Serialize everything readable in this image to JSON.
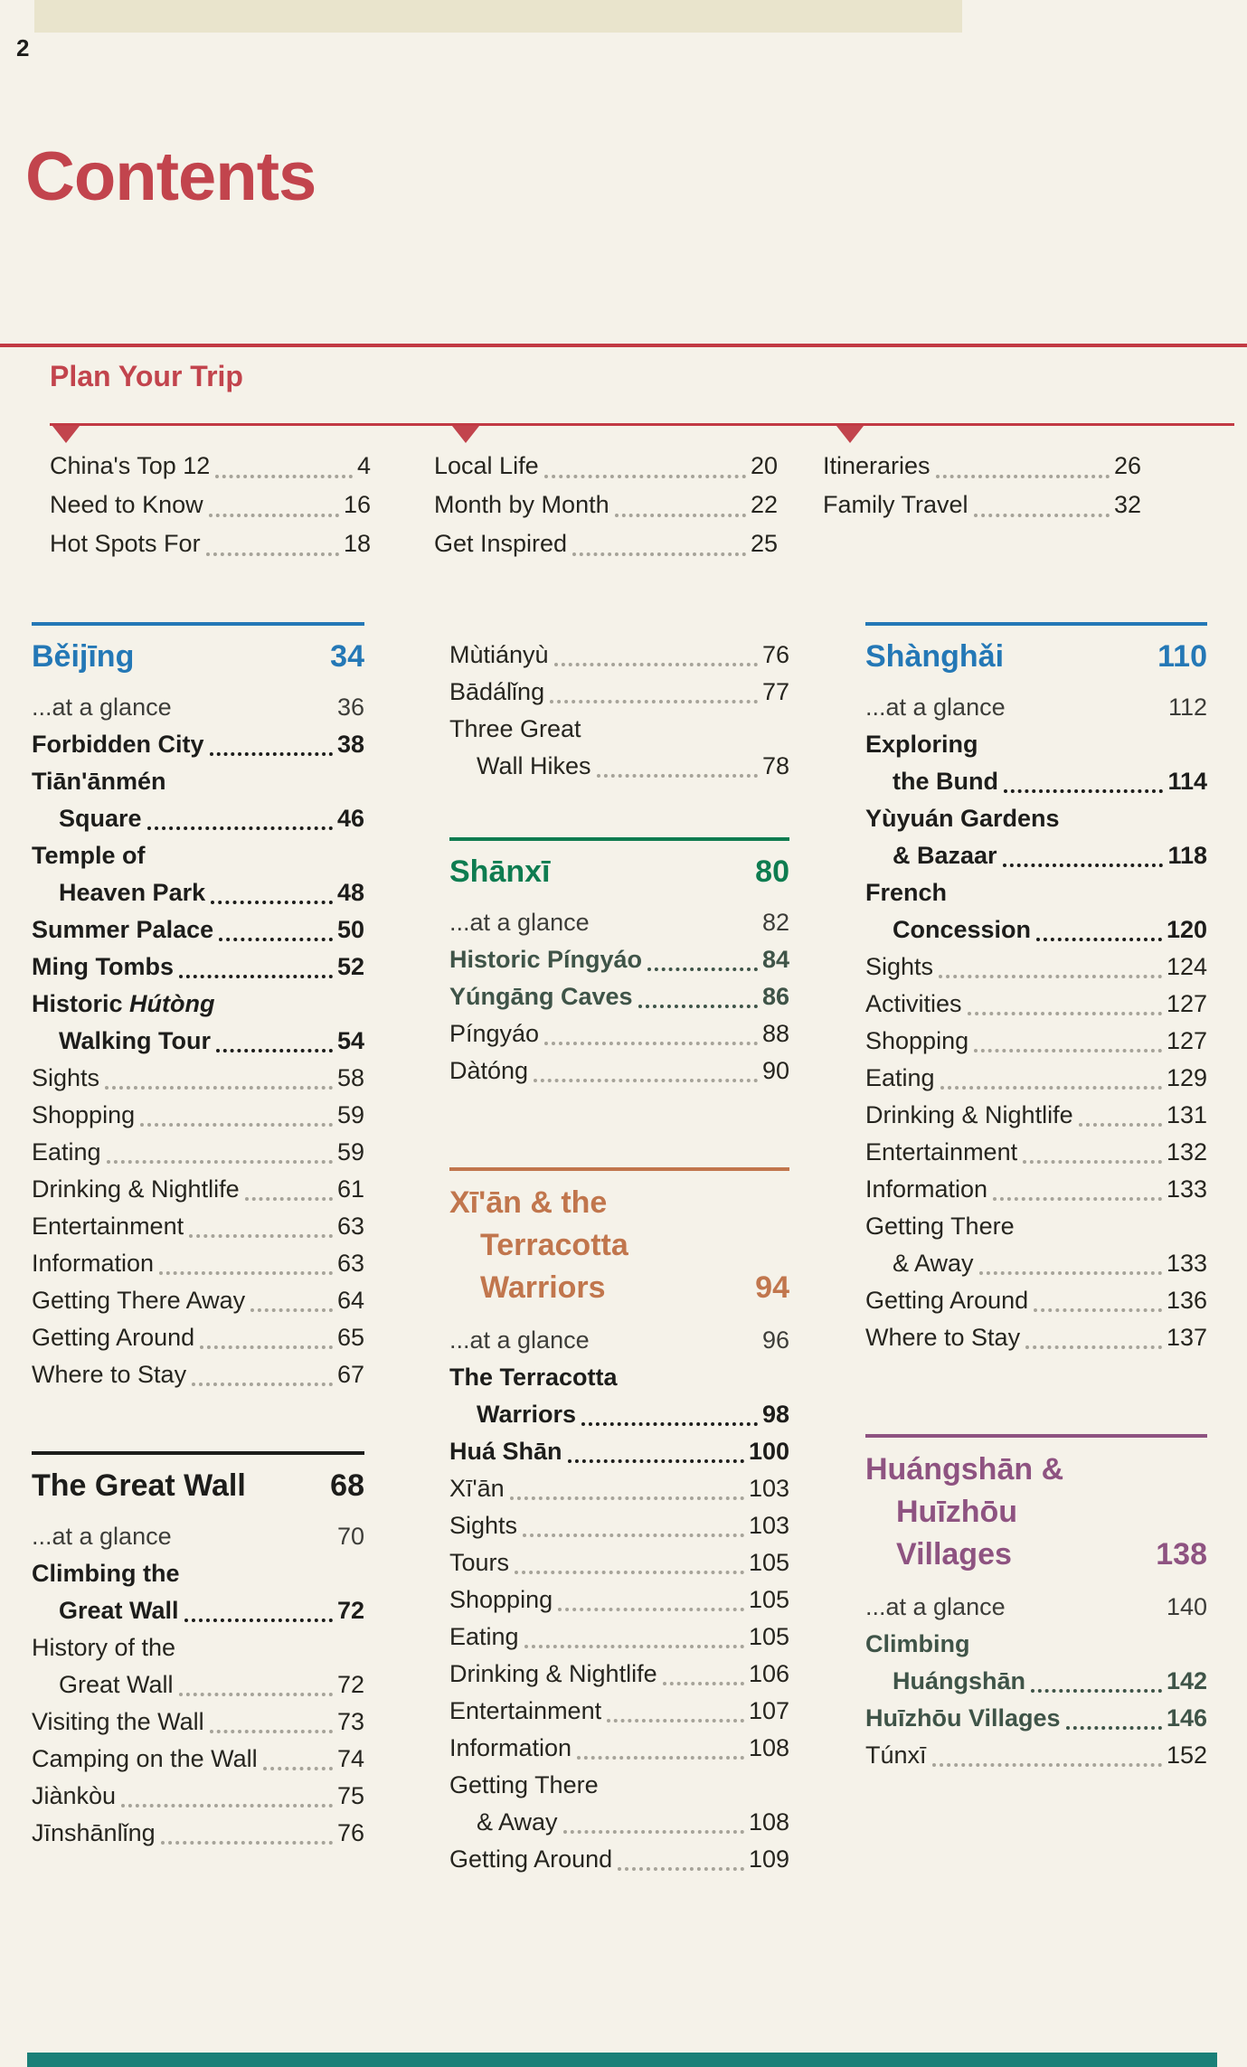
{
  "page": {
    "number": "2",
    "title": "Contents"
  },
  "colors": {
    "red": "#c2444d",
    "rule_red": "#c23a44",
    "blue": "#2478b6",
    "green": "#0e7c50",
    "orange": "#c1764d",
    "purple": "#8e5381",
    "black": "#1d1d1b",
    "teal_bar": "#1a8078",
    "leader_gray": "#a6a399"
  },
  "plan_your_trip": {
    "heading": "Plan Your Trip",
    "columns": [
      [
        {
          "label": "China's Top 12",
          "page": "4",
          "dots": true
        },
        {
          "label": "Need to Know",
          "page": "16",
          "dots": true
        },
        {
          "label": "Hot Spots For",
          "page": "18",
          "dots": true
        }
      ],
      [
        {
          "label": "Local Life",
          "page": "20",
          "dots": true
        },
        {
          "label": "Month by Month",
          "page": "22",
          "dots": true
        },
        {
          "label": "Get Inspired",
          "page": "25",
          "dots": true
        }
      ],
      [
        {
          "label": "Itineraries",
          "page": "26",
          "dots": true
        },
        {
          "label": "Family Travel",
          "page": "32",
          "dots": true
        }
      ]
    ]
  },
  "columns": [
    {
      "blocks": [
        {
          "key": "beijing",
          "heading": "Běijīng",
          "page": "34",
          "color": "#2478b6",
          "bold_color": "#1d1d1b",
          "entries": [
            {
              "label": "...at a glance",
              "page": "36",
              "dots": false,
              "glance": true
            },
            {
              "label": "Forbidden City",
              "page": "38",
              "bold": true,
              "dots": true
            },
            {
              "line1": "Tiān'ānmén",
              "label": "Square",
              "page": "46",
              "bold": true,
              "dots": true
            },
            {
              "line1": "Temple of",
              "label": "Heaven Park",
              "page": "48",
              "bold": true,
              "dots": true
            },
            {
              "label": "Summer Palace",
              "page": "50",
              "bold": true,
              "dots": true
            },
            {
              "label": "Ming Tombs",
              "page": "52",
              "bold": true,
              "dots": true
            },
            {
              "line1_pre": "Historic ",
              "line1_italic": "Hútòng",
              "label": "Walking Tour",
              "page": "54",
              "bold": true,
              "dots": true
            },
            {
              "label": "Sights",
              "page": "58",
              "dots": true
            },
            {
              "label": "Shopping",
              "page": "59",
              "dots": true
            },
            {
              "label": "Eating",
              "page": "59",
              "dots": true
            },
            {
              "label": "Drinking & Nightlife",
              "page": "61",
              "dots": true
            },
            {
              "label": "Entertainment",
              "page": "63",
              "dots": true
            },
            {
              "label": "Information",
              "page": "63",
              "dots": true
            },
            {
              "label": "Getting There Away",
              "page": "64",
              "dots": true
            },
            {
              "label": "Getting Around",
              "page": "65",
              "dots": true
            },
            {
              "label": "Where to Stay",
              "page": "67",
              "dots": true
            }
          ]
        },
        {
          "key": "greatwall",
          "heading": "The Great Wall",
          "page": "68",
          "color": "#1d1d1b",
          "bold_color": "#1d1d1b",
          "entries": [
            {
              "label": "...at a glance",
              "page": "70",
              "dots": false,
              "glance": true
            },
            {
              "line1": "Climbing the",
              "label": "Great Wall",
              "page": "72",
              "bold": true,
              "dots": true
            },
            {
              "line1": "History of the",
              "label": "Great Wall",
              "page": "72",
              "dots": true
            },
            {
              "label": "Visiting the Wall",
              "page": "73",
              "dots": true
            },
            {
              "label": "Camping on the Wall",
              "page": "74",
              "dots": true
            },
            {
              "label": "Jiànkòu",
              "page": "75",
              "dots": true
            },
            {
              "label": "Jīnshānlǐng",
              "page": "76",
              "dots": true
            }
          ]
        }
      ]
    },
    {
      "blocks": [
        {
          "key": "greatwall-cont",
          "entries": [
            {
              "label": "Mùtiányù",
              "page": "76",
              "dots": true
            },
            {
              "label": "Bādálǐng",
              "page": "77",
              "dots": true
            },
            {
              "line1": "Three Great",
              "label": "Wall Hikes",
              "page": "78",
              "dots": true
            }
          ]
        },
        {
          "key": "shanxi",
          "heading": "Shānxī",
          "page": "80",
          "color": "#0e7c50",
          "bold_color": "#3f5448",
          "entries": [
            {
              "label": "...at a glance",
              "page": "82",
              "dots": false,
              "glance": true
            },
            {
              "label": "Historic Píngyáo",
              "page": "84",
              "bold": true,
              "dots": true
            },
            {
              "label": "Yúngāng Caves",
              "page": "86",
              "bold": true,
              "dots": true
            },
            {
              "label": "Píngyáo",
              "page": "88",
              "dots": true
            },
            {
              "label": "Dàtóng",
              "page": "90",
              "dots": true
            }
          ]
        },
        {
          "key": "xian",
          "heading_lines": [
            "Xī'ān & the",
            "Terracotta",
            "Warriors"
          ],
          "page": "94",
          "color": "#c1764d",
          "bold_color": "#1d1d1b",
          "entries": [
            {
              "label": "...at a glance",
              "page": "96",
              "dots": false,
              "glance": true
            },
            {
              "line1": "The Terracotta",
              "label": "Warriors",
              "page": "98",
              "bold": true,
              "dots": true
            },
            {
              "label": "Huá Shān",
              "page": "100",
              "bold": true,
              "dots": true
            },
            {
              "label": "Xī'ān",
              "page": "103",
              "dots": true
            },
            {
              "label": "Sights",
              "page": "103",
              "dots": true
            },
            {
              "label": "Tours",
              "page": "105",
              "dots": true
            },
            {
              "label": "Shopping",
              "page": "105",
              "dots": true
            },
            {
              "label": "Eating",
              "page": "105",
              "dots": true
            },
            {
              "label": "Drinking & Nightlife",
              "page": "106",
              "dots": true
            },
            {
              "label": "Entertainment",
              "page": "107",
              "dots": true
            },
            {
              "label": "Information",
              "page": "108",
              "dots": true
            },
            {
              "line1": "Getting There",
              "label": "& Away",
              "page": "108",
              "dots": true
            },
            {
              "label": "Getting Around",
              "page": "109",
              "dots": true
            }
          ]
        }
      ]
    },
    {
      "blocks": [
        {
          "key": "shanghai",
          "heading": "Shànghǎi",
          "page": "110",
          "color": "#2478b6",
          "bold_color": "#1d1d1b",
          "entries": [
            {
              "label": "...at a glance",
              "page": "112",
              "dots": false,
              "glance": true
            },
            {
              "line1": "Exploring",
              "label": "the Bund",
              "page": "114",
              "bold": true,
              "dots": true
            },
            {
              "line1": "Yùyuán Gardens",
              "label": "& Bazaar",
              "page": "118",
              "bold": true,
              "dots": true
            },
            {
              "line1": "French",
              "label": "Concession",
              "page": "120",
              "bold": true,
              "dots": true
            },
            {
              "label": "Sights",
              "page": "124",
              "dots": true
            },
            {
              "label": "Activities",
              "page": "127",
              "dots": true
            },
            {
              "label": "Shopping",
              "page": "127",
              "dots": true
            },
            {
              "label": "Eating",
              "page": "129",
              "dots": true
            },
            {
              "label": "Drinking & Nightlife",
              "page": "131",
              "dots": true
            },
            {
              "label": "Entertainment",
              "page": "132",
              "dots": true
            },
            {
              "label": "Information",
              "page": "133",
              "dots": true
            },
            {
              "line1": "Getting There",
              "label": "& Away",
              "page": "133",
              "dots": true
            },
            {
              "label": "Getting Around",
              "page": "136",
              "dots": true
            },
            {
              "label": "Where to Stay",
              "page": "137",
              "dots": true
            }
          ]
        },
        {
          "key": "huangshan",
          "heading_lines": [
            "Huángshān &",
            "Huīzhōu",
            "Villages"
          ],
          "page": "138",
          "color": "#8e5381",
          "bold_color": "#3f5448",
          "entries": [
            {
              "label": "...at a glance",
              "page": "140",
              "dots": false,
              "glance": true
            },
            {
              "line1": "Climbing",
              "label": "Huángshān",
              "page": "142",
              "bold": true,
              "dots": true
            },
            {
              "label": "Huīzhōu Villages",
              "page": "146",
              "bold": true,
              "dots": true
            },
            {
              "label": "Túnxī",
              "page": "152",
              "dots": true
            }
          ]
        }
      ]
    }
  ]
}
